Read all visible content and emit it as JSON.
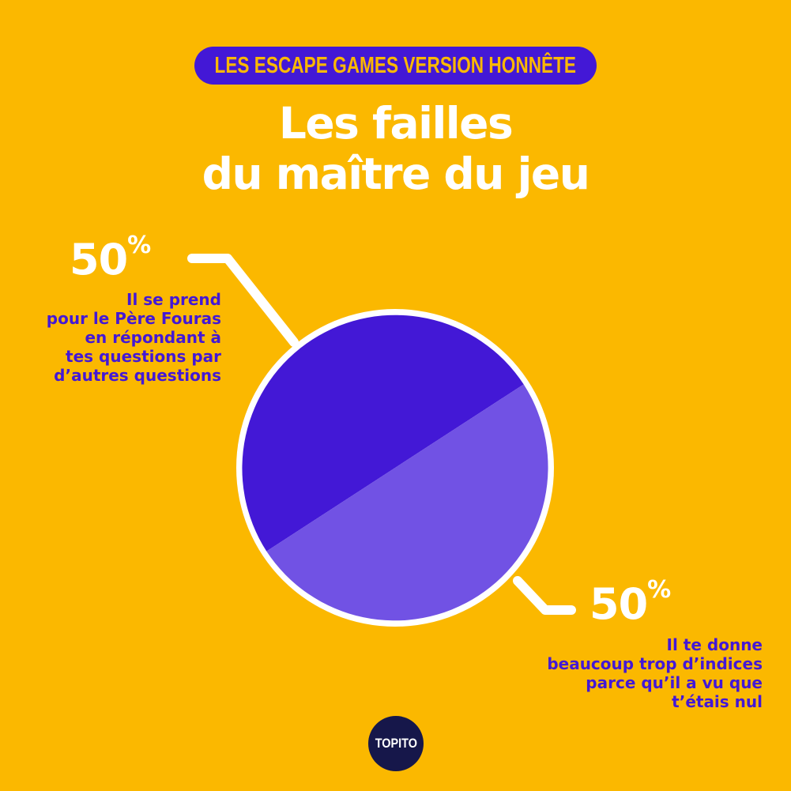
{
  "header": {
    "badge": "LES ESCAPE GAMES VERSION HONNÊTE",
    "title_lines": [
      "Les failles",
      "du maître du jeu"
    ]
  },
  "chart_data": {
    "type": "pie",
    "slices": [
      {
        "value": 50,
        "percent_label": "50",
        "label_lines": [
          "Il se prend",
          "pour le Père Fouras",
          "en répondant à",
          "tes questions par",
          "d’autres questions"
        ],
        "color": "#4318D6"
      },
      {
        "value": 50,
        "percent_label": "50",
        "label_lines": [
          "Il te donne",
          "beaucoup trop d’indices",
          "parce qu’il a vu que",
          "t’étais nul"
        ],
        "color": "#7152E4"
      }
    ],
    "percent_symbol": "%",
    "split_angle_deg": 33,
    "outline_color": "#FFFFFF"
  },
  "footer": {
    "logo": "TOPITO"
  },
  "colors": {
    "background": "#FBB800",
    "accent": "#4318D6"
  }
}
